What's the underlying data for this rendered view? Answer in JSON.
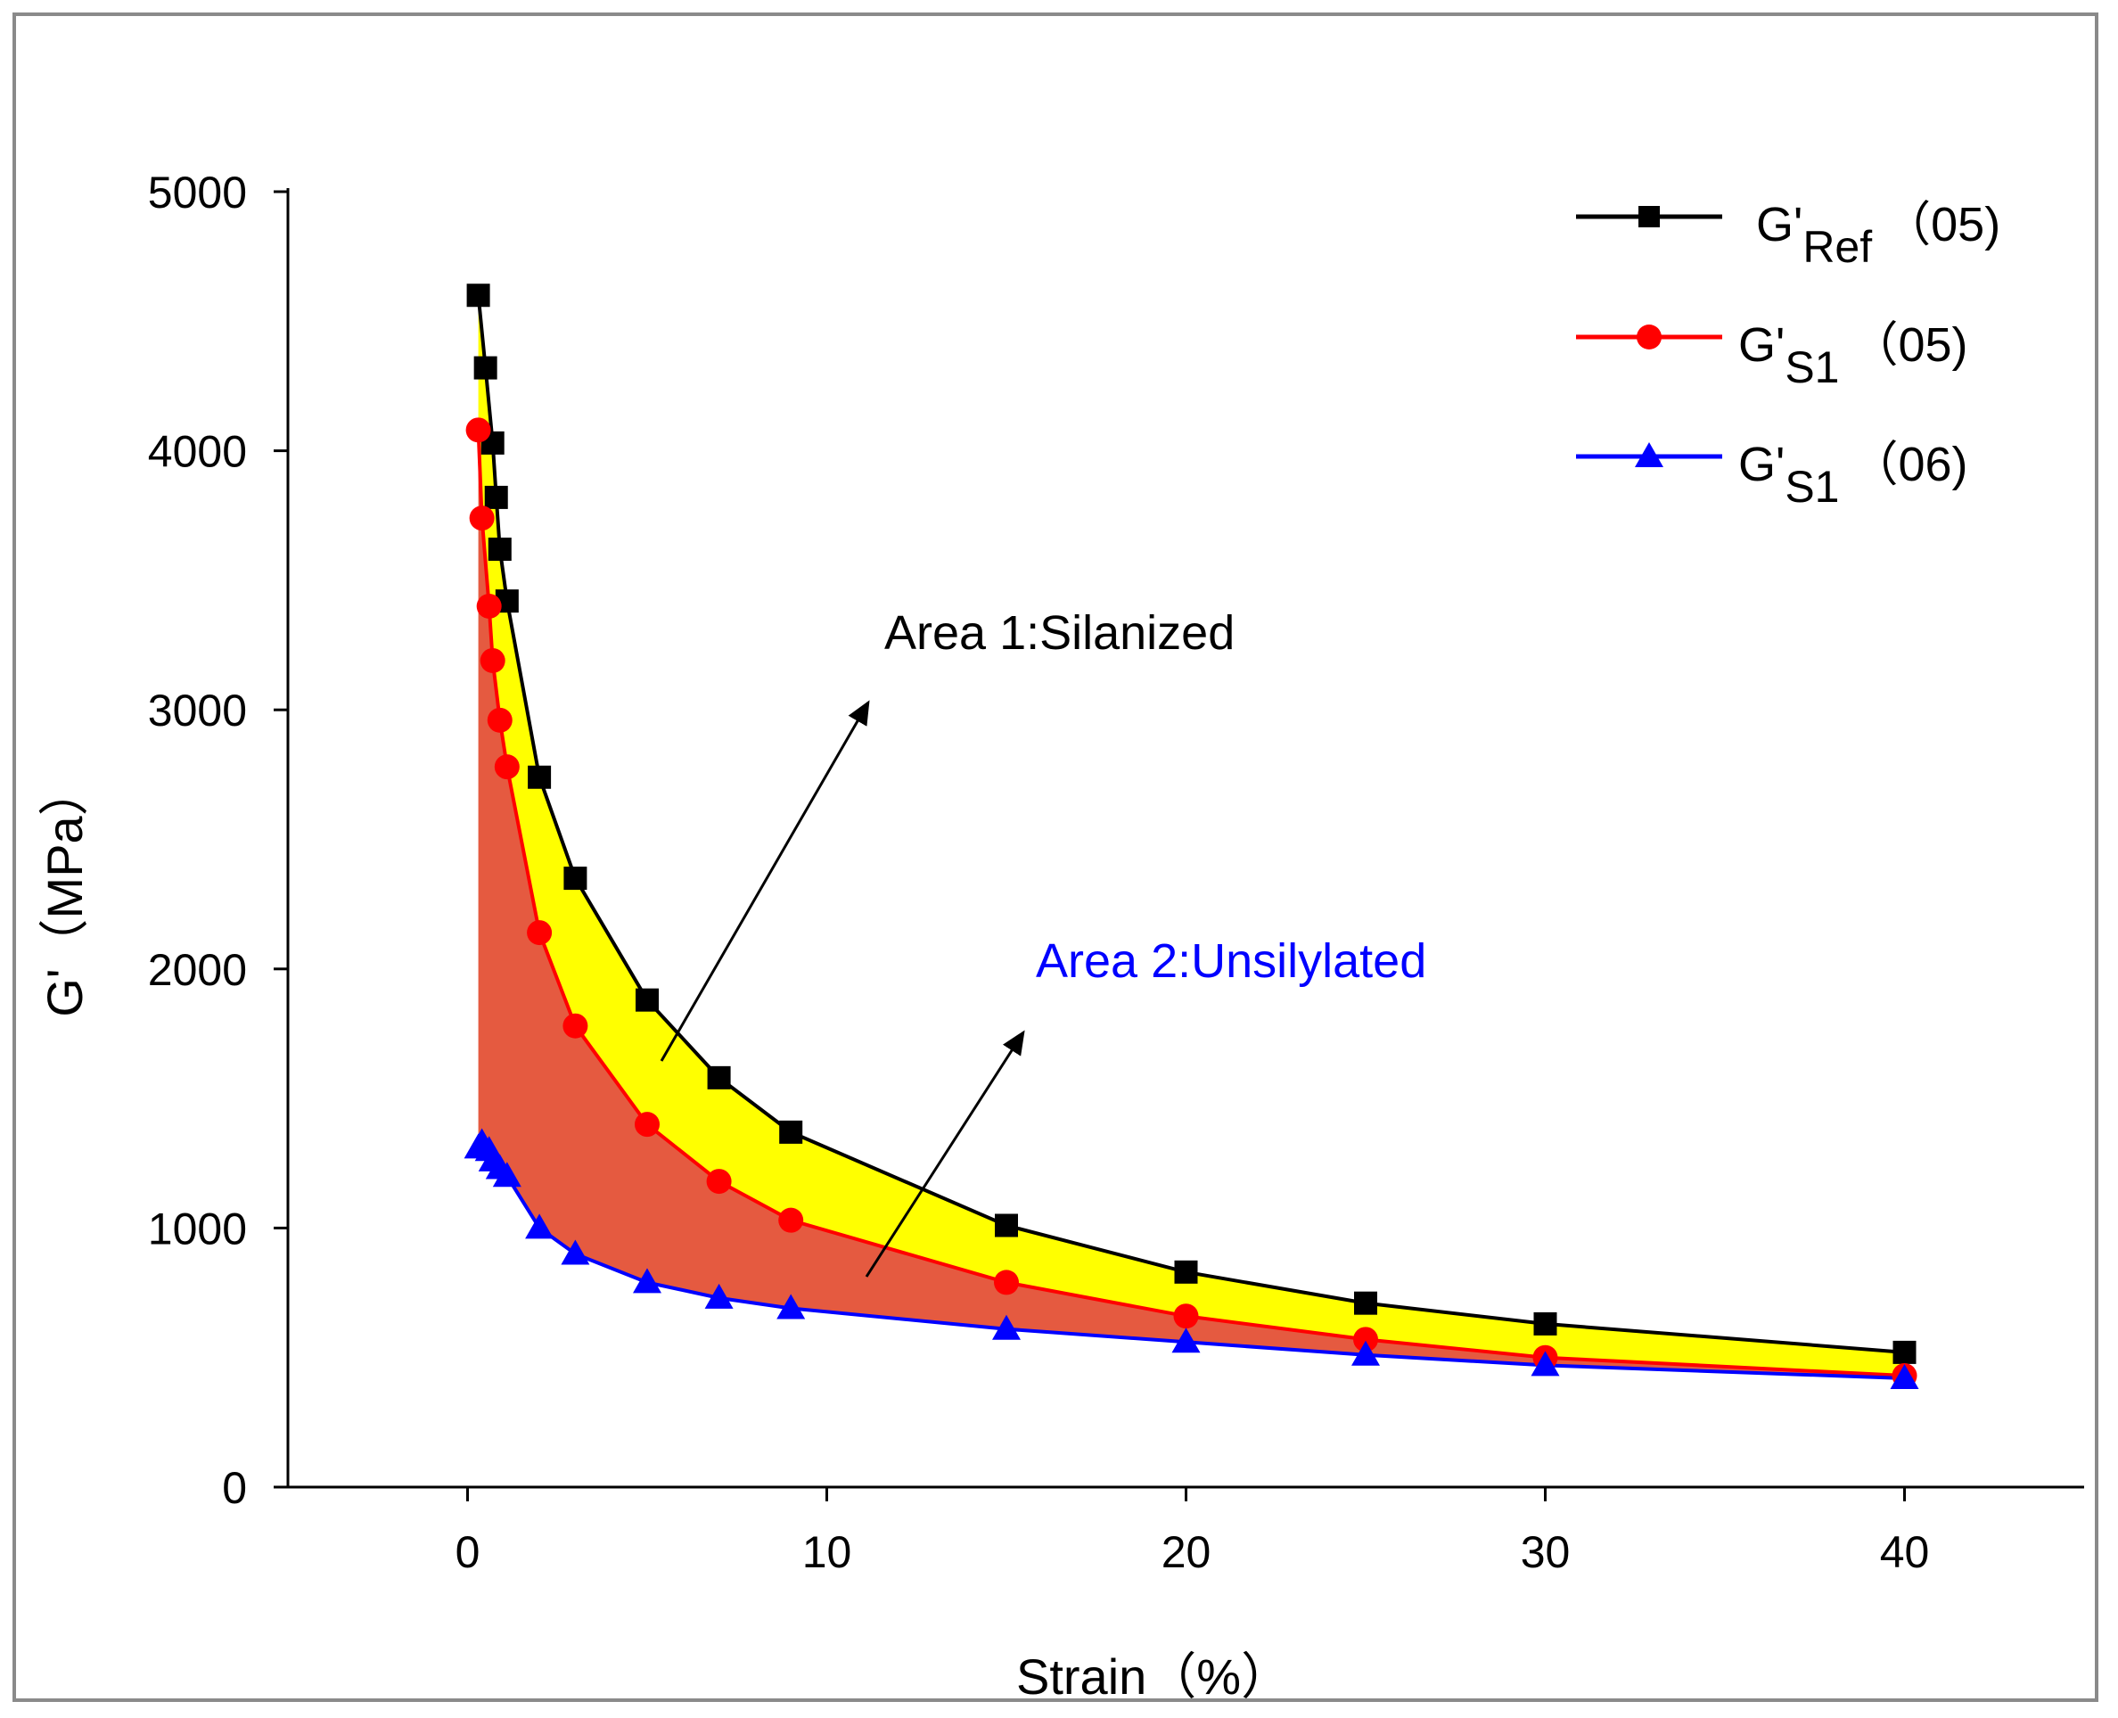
{
  "chart_data": {
    "type": "line",
    "title": "",
    "xlabel": "Strain（%）",
    "ylabel": "G'（MPa）",
    "xlim": [
      -5,
      45
    ],
    "ylim": [
      0,
      5000
    ],
    "xticks": [
      0,
      10,
      20,
      30,
      40
    ],
    "yticks": [
      0,
      1000,
      2000,
      3000,
      4000,
      5000
    ],
    "xtick_labels": [
      "0",
      "10",
      "20",
      "30",
      "40"
    ],
    "ytick_labels": [
      "0",
      "1000",
      "2000",
      "3000",
      "4000",
      "5000"
    ],
    "grid": false,
    "legend_position": "top-right",
    "series": [
      {
        "name": "G'Ref（05)",
        "legend_main": "G'",
        "legend_sub": "Ref",
        "legend_tail": "（05)",
        "color": "#000000",
        "marker": "square",
        "x": [
          0.3,
          0.5,
          0.7,
          0.8,
          0.9,
          1.1,
          2,
          3,
          5,
          7,
          9,
          15,
          20,
          25,
          30,
          40
        ],
        "y": [
          4600,
          4320,
          4030,
          3820,
          3620,
          3420,
          2740,
          2350,
          1880,
          1580,
          1370,
          1010,
          830,
          710,
          630,
          520
        ]
      },
      {
        "name": "G'S1（05)",
        "legend_main": "G'",
        "legend_sub": "S1",
        "legend_tail": "（05)",
        "color": "#ff0000",
        "marker": "circle",
        "x": [
          0.3,
          0.4,
          0.6,
          0.7,
          0.9,
          1.1,
          2,
          3,
          5,
          7,
          9,
          15,
          20,
          25,
          30,
          40
        ],
        "y": [
          4080,
          3740,
          3400,
          3190,
          2960,
          2780,
          2140,
          1780,
          1400,
          1180,
          1030,
          790,
          660,
          570,
          500,
          430
        ]
      },
      {
        "name": "G'S1（06)",
        "legend_main": "G'",
        "legend_sub": "S1",
        "legend_tail": "（06)",
        "color": "#0000ff",
        "marker": "triangle",
        "x": [
          0.3,
          0.4,
          0.6,
          0.7,
          0.9,
          1.1,
          2,
          3,
          5,
          7,
          9,
          15,
          20,
          25,
          30,
          40
        ],
        "y": [
          1310,
          1330,
          1300,
          1260,
          1230,
          1200,
          1000,
          900,
          790,
          730,
          690,
          610,
          560,
          510,
          470,
          420
        ]
      }
    ],
    "areas": [
      {
        "between": [
          0,
          1
        ],
        "color": "#ffff00"
      },
      {
        "between": [
          1,
          2
        ],
        "color": "#e55a40"
      }
    ],
    "annotations": [
      {
        "text": "Area 1:Silanized",
        "color": "#000000"
      },
      {
        "text": "Area 2:Unsilylated",
        "color": "#0000ff"
      }
    ]
  }
}
